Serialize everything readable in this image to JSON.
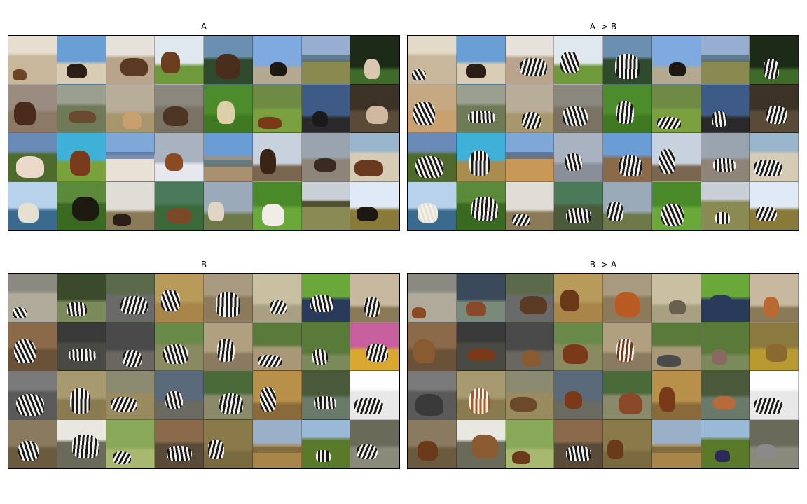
{
  "panels": [
    {
      "id": "A",
      "title": "A",
      "tiles": [
        {
          "sky": "#e8ded0",
          "ground": "#c9b79c",
          "subject": "horse",
          "tone": "#6b4525"
        },
        {
          "sky": "#6a9fd6",
          "ground": "#d8cdb4",
          "subject": "horse",
          "tone": "#2a1e16"
        },
        {
          "sky": "#e6e1da",
          "ground": "#b8a48a",
          "subject": "horse",
          "tone": "#5a3a22"
        },
        {
          "sky": "#dfe7ef",
          "ground": "#6f9a3c",
          "subject": "horse",
          "tone": "#6b3e1f"
        },
        {
          "sky": "#6a8fb0",
          "ground": "#2f4a2c",
          "subject": "horse",
          "tone": "#4a2e1d"
        },
        {
          "sky": "#7faadf",
          "ground": "#b5a890",
          "subject": "horse",
          "tone": "#1e1812"
        },
        {
          "sky": "#97aed0",
          "ground": "#8a8a50",
          "subject": "landscape",
          "tone": "#3c5a6e"
        },
        {
          "sky": "#1e2a18",
          "ground": "#3e6a2a",
          "subject": "horse",
          "tone": "#d8c8b0"
        },
        {
          "sky": "#9a8c80",
          "ground": "#8c7a66",
          "subject": "horse",
          "tone": "#4a2a1a"
        },
        {
          "sky": "#9a9f90",
          "ground": "#6e7a58",
          "subject": "horse",
          "tone": "#6a4a30"
        },
        {
          "sky": "#b8ad98",
          "ground": "#a8966c",
          "subject": "horse",
          "tone": "#c8a070"
        },
        {
          "sky": "#8a887e",
          "ground": "#7a7262",
          "subject": "horse",
          "tone": "#4e3624"
        },
        {
          "sky": "#4c8c2a",
          "ground": "#3f7a22",
          "subject": "horse",
          "tone": "#ddd0a8"
        },
        {
          "sky": "#6e8a44",
          "ground": "#7aa040",
          "subject": "horse",
          "tone": "#7a3a18"
        },
        {
          "sky": "#3e5a86",
          "ground": "#2a2a2a",
          "subject": "horse",
          "tone": "#1a1a1a"
        },
        {
          "sky": "#3c3226",
          "ground": "#5a4a38",
          "subject": "horse",
          "tone": "#d0b8a0"
        },
        {
          "sky": "#6a8bb8",
          "ground": "#4e6a2c",
          "subject": "horse",
          "tone": "#ead8c8"
        },
        {
          "sky": "#3fb0d8",
          "ground": "#7aa23a",
          "subject": "horse",
          "tone": "#7a3a1c"
        },
        {
          "sky": "#7fa8d8",
          "ground": "#e8e2d6",
          "subject": "landscape",
          "tone": "#3a5a8a"
        },
        {
          "sky": "#a8b2c0",
          "ground": "#e6e8ee",
          "subject": "horse",
          "tone": "#8a4a22"
        },
        {
          "sky": "#6a9cd6",
          "ground": "#a89070",
          "subject": "landscape",
          "tone": "#3a6a88"
        },
        {
          "sky": "#c8d2de",
          "ground": "#7a6650",
          "subject": "horse",
          "tone": "#3a2416"
        },
        {
          "sky": "#9aa4ae",
          "ground": "#8e8478",
          "subject": "horse",
          "tone": "#3a2a20"
        },
        {
          "sky": "#9ab6cc",
          "ground": "#d6ccb6",
          "subject": "horse",
          "tone": "#6a3a20"
        },
        {
          "sky": "#b8d2ec",
          "ground": "#3a6a8e",
          "subject": "horse",
          "tone": "#e6e0d0"
        },
        {
          "sky": "#5a8a3a",
          "ground": "#3a6a22",
          "subject": "horse",
          "tone": "#1e1a12"
        },
        {
          "sky": "#e0ddd6",
          "ground": "#8a7a58",
          "subject": "horse",
          "tone": "#2a2018"
        },
        {
          "sky": "#4a7a5a",
          "ground": "#3a6a3a",
          "subject": "horse",
          "tone": "#7a4a28"
        },
        {
          "sky": "#9aaab8",
          "ground": "#6e7848",
          "subject": "horse",
          "tone": "#e0d4c4"
        },
        {
          "sky": "#4a8a2a",
          "ground": "#6aa83a",
          "subject": "horse",
          "tone": "#f0ece6"
        },
        {
          "sky": "#c8cfd6",
          "ground": "#8a8a54",
          "subject": "landscape",
          "tone": "#2a2a22"
        },
        {
          "sky": "#dfeaf6",
          "ground": "#8a7a3a",
          "subject": "horse",
          "tone": "#1e1812"
        }
      ]
    },
    {
      "id": "AtoB",
      "title": "A -> B",
      "tiles": [
        {
          "sky": "#e4dac8",
          "ground": "#c9b79c",
          "subject": "zebra",
          "tone": "#1a1a1a"
        },
        {
          "sky": "#6a9fd6",
          "ground": "#d8cdb4",
          "subject": "horse",
          "tone": "#2a1e16"
        },
        {
          "sky": "#e6e1da",
          "ground": "#b8a48a",
          "subject": "zebra",
          "tone": "#1a1a1a"
        },
        {
          "sky": "#dfe7ef",
          "ground": "#6f9a3c",
          "subject": "zebra",
          "tone": "#1a1a1a"
        },
        {
          "sky": "#6a8fb0",
          "ground": "#2f4a2c",
          "subject": "zebra",
          "tone": "#1a1a1a"
        },
        {
          "sky": "#7faadf",
          "ground": "#b5a890",
          "subject": "horse",
          "tone": "#1e1812"
        },
        {
          "sky": "#97aed0",
          "ground": "#8a8a50",
          "subject": "landscape",
          "tone": "#3c5a6e"
        },
        {
          "sky": "#1e2a18",
          "ground": "#3e6a2a",
          "subject": "zebra",
          "tone": "#1a1a1a"
        },
        {
          "sky": "#c6a882",
          "ground": "#c9a070",
          "subject": "zebra",
          "tone": "#1a1a1a"
        },
        {
          "sky": "#9a9f90",
          "ground": "#6e7a58",
          "subject": "zebra",
          "tone": "#1a1a1a"
        },
        {
          "sky": "#b8ad98",
          "ground": "#a8966c",
          "subject": "zebra",
          "tone": "#1a1a1a"
        },
        {
          "sky": "#8a887e",
          "ground": "#7a7262",
          "subject": "zebra",
          "tone": "#1a1a1a"
        },
        {
          "sky": "#4c8c2a",
          "ground": "#3f7a22",
          "subject": "zebra",
          "tone": "#1a1a1a"
        },
        {
          "sky": "#6e8a44",
          "ground": "#7aa040",
          "subject": "zebra",
          "tone": "#1a1a1a"
        },
        {
          "sky": "#3e5a86",
          "ground": "#2a2a2a",
          "subject": "zebra",
          "tone": "#1a1a1a"
        },
        {
          "sky": "#3c3226",
          "ground": "#5a4a38",
          "subject": "zebra",
          "tone": "#1a1a1a"
        },
        {
          "sky": "#6a8bb8",
          "ground": "#4e6a2c",
          "subject": "zebra",
          "tone": "#1a1a1a"
        },
        {
          "sky": "#3fb0d8",
          "ground": "#a88c50",
          "subject": "zebra",
          "tone": "#1a1a1a"
        },
        {
          "sky": "#7fa8d8",
          "ground": "#c89858",
          "subject": "landscape",
          "tone": "#3a5a8a"
        },
        {
          "sky": "#a8b2c0",
          "ground": "#8a8e98",
          "subject": "zebra",
          "tone": "#1a1a1a"
        },
        {
          "sky": "#6a9cd6",
          "ground": "#8a6a48",
          "subject": "zebra",
          "tone": "#1a1a1a"
        },
        {
          "sky": "#c8d2de",
          "ground": "#7a6650",
          "subject": "zebra",
          "tone": "#1a1a1a"
        },
        {
          "sky": "#9aa4ae",
          "ground": "#8e8478",
          "subject": "zebra",
          "tone": "#1a1a1a"
        },
        {
          "sky": "#9ab6cc",
          "ground": "#d6ccb6",
          "subject": "zebra",
          "tone": "#1a1a1a"
        },
        {
          "sky": "#b8d2ec",
          "ground": "#3a6a8e",
          "subject": "zebra",
          "tone": "#e6e0d0"
        },
        {
          "sky": "#5a8a3a",
          "ground": "#3a6a22",
          "subject": "zebra",
          "tone": "#1a1a1a"
        },
        {
          "sky": "#e0ddd6",
          "ground": "#8a7a58",
          "subject": "zebra",
          "tone": "#1a1a1a"
        },
        {
          "sky": "#4a7a5a",
          "ground": "#4a5a3a",
          "subject": "zebra",
          "tone": "#1a1a1a"
        },
        {
          "sky": "#9aaab8",
          "ground": "#6e7848",
          "subject": "zebra",
          "tone": "#1a1a1a"
        },
        {
          "sky": "#4a8a2a",
          "ground": "#6aa83a",
          "subject": "zebra",
          "tone": "#1a1a1a"
        },
        {
          "sky": "#c8cfd6",
          "ground": "#8a8a54",
          "subject": "zebra",
          "tone": "#1a1a1a"
        },
        {
          "sky": "#dfeaf6",
          "ground": "#8a7a3a",
          "subject": "zebra",
          "tone": "#1a1a1a"
        }
      ]
    },
    {
      "id": "B",
      "title": "B",
      "tiles": [
        {
          "sky": "#8a8a80",
          "ground": "#b0aa9a",
          "subject": "zebra",
          "tone": "#1a1a1a"
        },
        {
          "sky": "#3a4a2a",
          "ground": "#7a8a5a",
          "subject": "zebra",
          "tone": "#1a1a1a"
        },
        {
          "sky": "#5a6a4a",
          "ground": "#6a6a6a",
          "subject": "zebra",
          "tone": "#1a1a1a"
        },
        {
          "sky": "#b89a5a",
          "ground": "#a8864a",
          "subject": "zebra",
          "tone": "#1a1a1a"
        },
        {
          "sky": "#a89a80",
          "ground": "#8c7a5a",
          "subject": "zebra",
          "tone": "#1a1a1a"
        },
        {
          "sky": "#c8c0a0",
          "ground": "#a8a080",
          "subject": "zebra",
          "tone": "#1a1a1a"
        },
        {
          "sky": "#6aa83a",
          "ground": "#2a3a5a",
          "subject": "zebra",
          "tone": "#1a1a1a"
        },
        {
          "sky": "#c8b8a0",
          "ground": "#8a7a58",
          "subject": "zebra",
          "tone": "#1a1a1a"
        },
        {
          "sky": "#8a6a48",
          "ground": "#6a5238",
          "subject": "zebra",
          "tone": "#1a1a1a"
        },
        {
          "sky": "#3a3a3a",
          "ground": "#4a4a44",
          "subject": "zebra",
          "tone": "#1a1a1a"
        },
        {
          "sky": "#4a4a4a",
          "ground": "#6a6660",
          "subject": "zebra",
          "tone": "#1a1a1a"
        },
        {
          "sky": "#6a8a4a",
          "ground": "#8a8a60",
          "subject": "zebra",
          "tone": "#1a1a1a"
        },
        {
          "sky": "#b0a080",
          "ground": "#8a7a60",
          "subject": "zebra",
          "tone": "#1a1a1a"
        },
        {
          "sky": "#5a7a3a",
          "ground": "#a89878",
          "subject": "zebra",
          "tone": "#1a1a1a"
        },
        {
          "sky": "#5a7a3a",
          "ground": "#7a8a5a",
          "subject": "zebra",
          "tone": "#1a1a1a"
        },
        {
          "sky": "#c860a0",
          "ground": "#d8a830",
          "subject": "zebra",
          "tone": "#1a1a1a"
        },
        {
          "sky": "#7a7a7a",
          "ground": "#5a5a5a",
          "subject": "zebra",
          "tone": "#1a1a1a"
        },
        {
          "sky": "#a89a70",
          "ground": "#8a7a50",
          "subject": "zebra",
          "tone": "#1a1a1a"
        },
        {
          "sky": "#8a8a70",
          "ground": "#9a8a60",
          "subject": "zebra",
          "tone": "#1a1a1a"
        },
        {
          "sky": "#5a6a7a",
          "ground": "#6a6a60",
          "subject": "zebra",
          "tone": "#1a1a1a"
        },
        {
          "sky": "#4a6a3a",
          "ground": "#8a8a6a",
          "subject": "zebra",
          "tone": "#1a1a1a"
        },
        {
          "sky": "#b8904a",
          "ground": "#8a6a3a",
          "subject": "zebra",
          "tone": "#1a1a1a"
        },
        {
          "sky": "#4a5a3a",
          "ground": "#6a7a6a",
          "subject": "zebra",
          "tone": "#1a1a1a"
        },
        {
          "sky": "#ffffff",
          "ground": "#e8e8e8",
          "subject": "zebra",
          "tone": "#1a1a1a"
        },
        {
          "sky": "#8a7a60",
          "ground": "#6a5a40",
          "subject": "zebra",
          "tone": "#1a1a1a"
        },
        {
          "sky": "#e8e8e0",
          "ground": "#6a6a5a",
          "subject": "zebra",
          "tone": "#1a1a1a"
        },
        {
          "sky": "#8aa85a",
          "ground": "#a8b870",
          "subject": "zebra",
          "tone": "#1a1a1a"
        },
        {
          "sky": "#8a6a4a",
          "ground": "#5a4a3a",
          "subject": "zebra",
          "tone": "#1a1a1a"
        },
        {
          "sky": "#8a7a4a",
          "ground": "#7a6a40",
          "subject": "zebra",
          "tone": "#1a1a1a"
        },
        {
          "sky": "#9ab0c8",
          "ground": "#a8864a",
          "subject": "landscape",
          "tone": "#6a5a3a"
        },
        {
          "sky": "#9ab8d8",
          "ground": "#5a7a2a",
          "subject": "zebra",
          "tone": "#1a1a1a"
        },
        {
          "sky": "#6a6a5a",
          "ground": "#8a8a7a",
          "subject": "zebra",
          "tone": "#1a1a1a"
        }
      ]
    },
    {
      "id": "BtoA",
      "title": "B -> A",
      "tiles": [
        {
          "sky": "#8a8a80",
          "ground": "#b0aa9a",
          "subject": "horse",
          "tone": "#8a4a22"
        },
        {
          "sky": "#3a4a5a",
          "ground": "#7a8a7a",
          "subject": "horse",
          "tone": "#8a4a2a"
        },
        {
          "sky": "#5a6a4a",
          "ground": "#6a6a6a",
          "subject": "horse",
          "tone": "#5a3a22"
        },
        {
          "sky": "#b89a5a",
          "ground": "#a8864a",
          "subject": "horse",
          "tone": "#6a3a18"
        },
        {
          "sky": "#a89a80",
          "ground": "#8c7a5a",
          "subject": "horse",
          "tone": "#b85a22"
        },
        {
          "sky": "#c8c0a0",
          "ground": "#a8a080",
          "subject": "horse",
          "tone": "#6a6050"
        },
        {
          "sky": "#6aa83a",
          "ground": "#2a3a5a",
          "subject": "horse",
          "tone": "#2a3a5a"
        },
        {
          "sky": "#c8b8a0",
          "ground": "#8a7a58",
          "subject": "horse",
          "tone": "#b86a30"
        },
        {
          "sky": "#8a6a48",
          "ground": "#6a5238",
          "subject": "horse",
          "tone": "#8a5a30"
        },
        {
          "sky": "#3a3a3a",
          "ground": "#4a4a44",
          "subject": "horse",
          "tone": "#7a3a1a"
        },
        {
          "sky": "#4a4a4a",
          "ground": "#6a6660",
          "subject": "horse",
          "tone": "#8a5a30"
        },
        {
          "sky": "#6a8a4a",
          "ground": "#8a8a60",
          "subject": "horse",
          "tone": "#7a3a1a"
        },
        {
          "sky": "#b0a080",
          "ground": "#8a7a60",
          "subject": "zebra",
          "tone": "#6a3a1a"
        },
        {
          "sky": "#5a7a3a",
          "ground": "#a89878",
          "subject": "horse",
          "tone": "#4a4a4a"
        },
        {
          "sky": "#5a7a3a",
          "ground": "#7a8a5a",
          "subject": "horse",
          "tone": "#8a6a60"
        },
        {
          "sky": "#8a7a40",
          "ground": "#b89a30",
          "subject": "horse",
          "tone": "#8a6a30"
        },
        {
          "sky": "#7a7a7a",
          "ground": "#5a5a5a",
          "subject": "horse",
          "tone": "#3a3a3a"
        },
        {
          "sky": "#a89a70",
          "ground": "#8a7a50",
          "subject": "zebra",
          "tone": "#a85a20"
        },
        {
          "sky": "#8a8a70",
          "ground": "#9a8a60",
          "subject": "horse",
          "tone": "#6a4a2a"
        },
        {
          "sky": "#5a6a7a",
          "ground": "#6a6a60",
          "subject": "horse",
          "tone": "#7a3a1a"
        },
        {
          "sky": "#4a6a3a",
          "ground": "#8a8a6a",
          "subject": "horse",
          "tone": "#8a4a2a"
        },
        {
          "sky": "#b8904a",
          "ground": "#8a6a3a",
          "subject": "horse",
          "tone": "#7a3a1a"
        },
        {
          "sky": "#4a5a3a",
          "ground": "#6a7a6a",
          "subject": "horse",
          "tone": "#b86a3a"
        },
        {
          "sky": "#ffffff",
          "ground": "#e8e8e8",
          "subject": "zebra",
          "tone": "#1a1a1a"
        },
        {
          "sky": "#8a7a60",
          "ground": "#6a5a40",
          "subject": "horse",
          "tone": "#6a3a1a"
        },
        {
          "sky": "#e8e8e0",
          "ground": "#6a6a5a",
          "subject": "horse",
          "tone": "#8a5a30"
        },
        {
          "sky": "#8aa85a",
          "ground": "#a8b870",
          "subject": "horse",
          "tone": "#6a3a1a"
        },
        {
          "sky": "#8a6a4a",
          "ground": "#5a4a3a",
          "subject": "zebra",
          "tone": "#1a1a1a"
        },
        {
          "sky": "#8a7a4a",
          "ground": "#7a6a40",
          "subject": "horse",
          "tone": "#6a3a1a"
        },
        {
          "sky": "#9ab0c8",
          "ground": "#a8864a",
          "subject": "landscape",
          "tone": "#6a5a3a"
        },
        {
          "sky": "#9ab8d8",
          "ground": "#5a7a2a",
          "subject": "horse",
          "tone": "#2a2a5a"
        },
        {
          "sky": "#6a6a5a",
          "ground": "#8a8a7a",
          "subject": "horse",
          "tone": "#8a8a8a"
        }
      ]
    }
  ]
}
